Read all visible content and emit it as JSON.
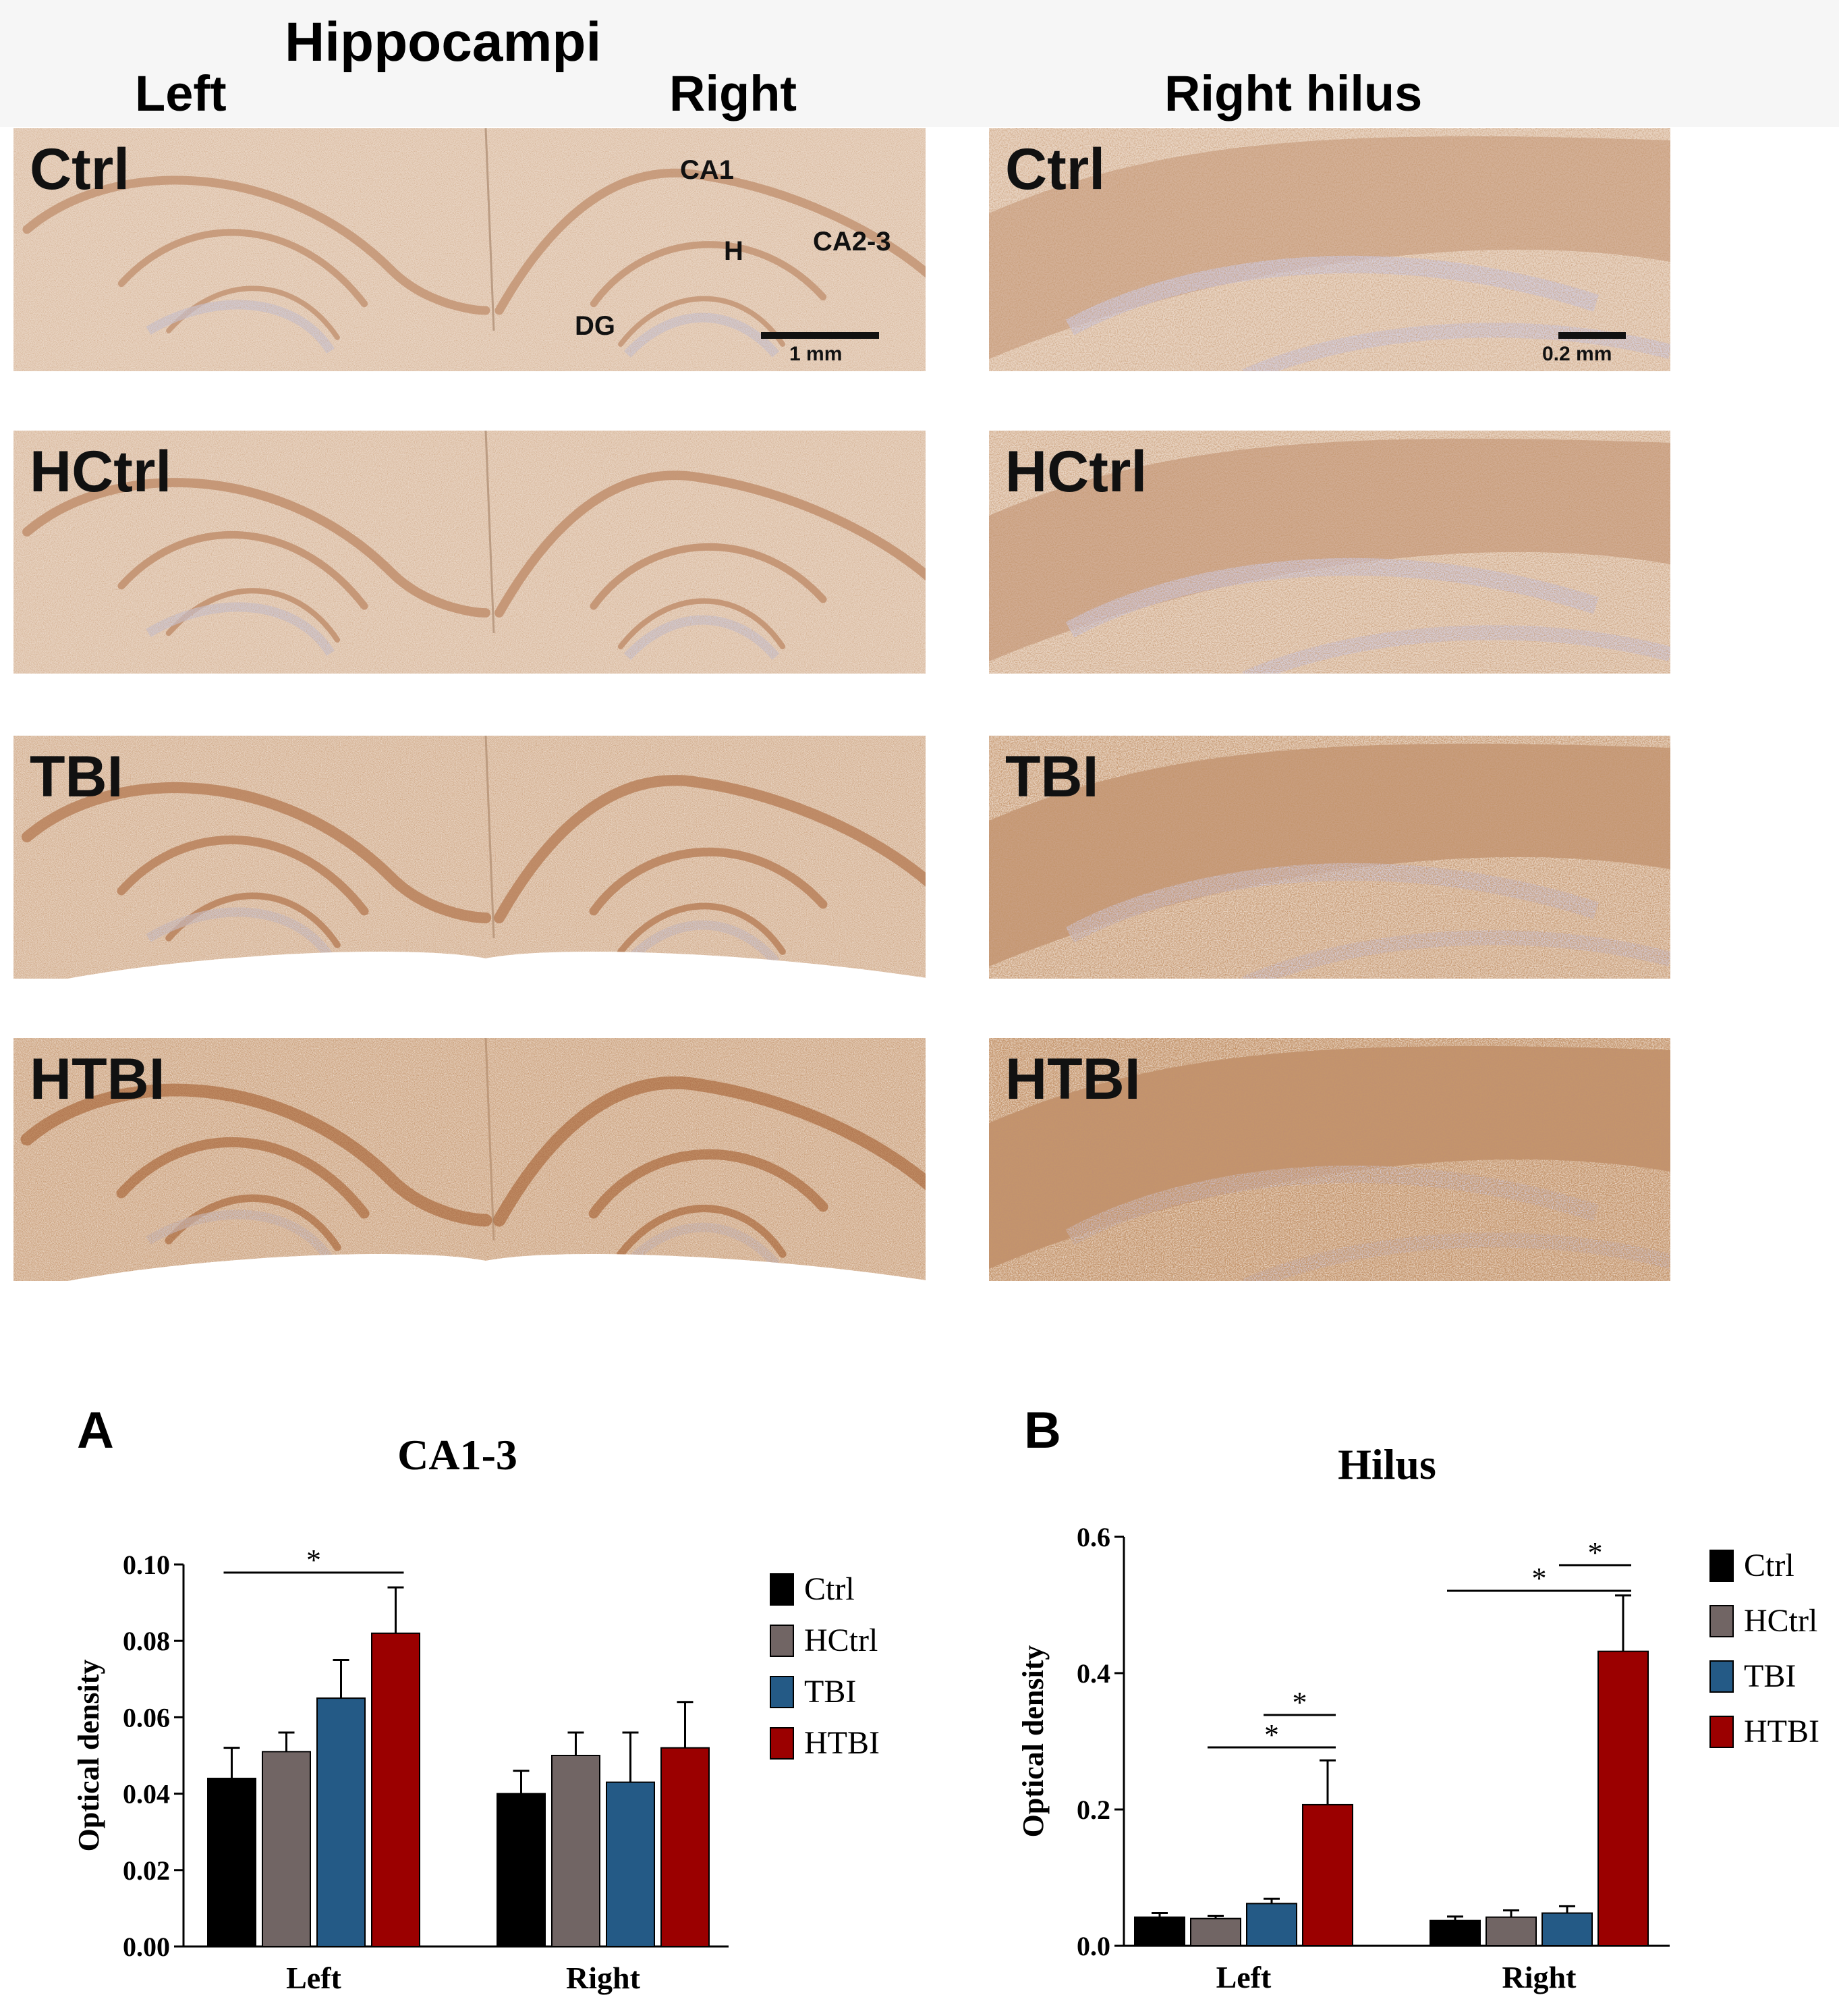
{
  "header": {
    "hippocampi": "Hippocampi",
    "left": "Left",
    "right": "Right",
    "right_hilus": "Right hilus"
  },
  "rows": [
    {
      "label": "Ctrl",
      "intensity": 0.3
    },
    {
      "label": "HCtrl",
      "intensity": 0.38
    },
    {
      "label": "TBI",
      "intensity": 0.62
    },
    {
      "label": "HTBI",
      "intensity": 0.88
    }
  ],
  "regions": {
    "ca1": "CA1",
    "h": "H",
    "ca23": "CA2-3",
    "dg": "DG"
  },
  "scalebars": {
    "hippocampi": "1 mm",
    "hilus": "0.2 mm"
  },
  "colors": {
    "Ctrl": "#000000",
    "HCtrl": "#716564",
    "TBI": "#245a86",
    "HTBI": "#9b0000",
    "tissue": "#e9d5c4",
    "stain": "#a0562a"
  },
  "chart_data": [
    {
      "panel": "A",
      "type": "bar",
      "title": "CA1-3",
      "ylabel": "Optical density",
      "xlabel": "",
      "categories": [
        "Left",
        "Right"
      ],
      "ylim": [
        0,
        0.1
      ],
      "yticks": [
        "0.00",
        "0.02",
        "0.04",
        "0.06",
        "0.08",
        "0.10"
      ],
      "series": [
        {
          "name": "Ctrl",
          "values": [
            0.044,
            0.04
          ],
          "errors": [
            0.008,
            0.006
          ]
        },
        {
          "name": "HCtrl",
          "values": [
            0.051,
            0.05
          ],
          "errors": [
            0.005,
            0.006
          ]
        },
        {
          "name": "TBI",
          "values": [
            0.065,
            0.043
          ],
          "errors": [
            0.01,
            0.013
          ]
        },
        {
          "name": "HTBI",
          "values": [
            0.082,
            0.052
          ],
          "errors": [
            0.012,
            0.012
          ]
        }
      ],
      "significance": [
        {
          "category": "Left",
          "from": "Ctrl",
          "to": "HTBI",
          "label": "*"
        }
      ],
      "legend_position": "right"
    },
    {
      "panel": "B",
      "type": "bar",
      "title": "Hilus",
      "ylabel": "Optical density",
      "xlabel": "",
      "categories": [
        "Left",
        "Right"
      ],
      "ylim": [
        0,
        0.6
      ],
      "yticks": [
        "0.0",
        "0.2",
        "0.4",
        "0.6"
      ],
      "series": [
        {
          "name": "Ctrl",
          "values": [
            0.042,
            0.037
          ],
          "errors": [
            0.006,
            0.006
          ]
        },
        {
          "name": "HCtrl",
          "values": [
            0.04,
            0.042
          ],
          "errors": [
            0.004,
            0.01
          ]
        },
        {
          "name": "TBI",
          "values": [
            0.062,
            0.048
          ],
          "errors": [
            0.007,
            0.01
          ]
        },
        {
          "name": "HTBI",
          "values": [
            0.207,
            0.432
          ],
          "errors": [
            0.065,
            0.082
          ]
        }
      ],
      "significance": [
        {
          "category": "Left",
          "from": "TBI",
          "to": "HTBI",
          "label": "*"
        },
        {
          "category": "Left",
          "from": "HCtrl",
          "to": "HTBI",
          "label": "*"
        },
        {
          "category": "Right",
          "from": "TBI",
          "to": "HTBI",
          "label": "*"
        },
        {
          "category": "Right",
          "from": "Ctrl",
          "to": "HTBI",
          "label": "*"
        }
      ],
      "legend_position": "right"
    }
  ]
}
